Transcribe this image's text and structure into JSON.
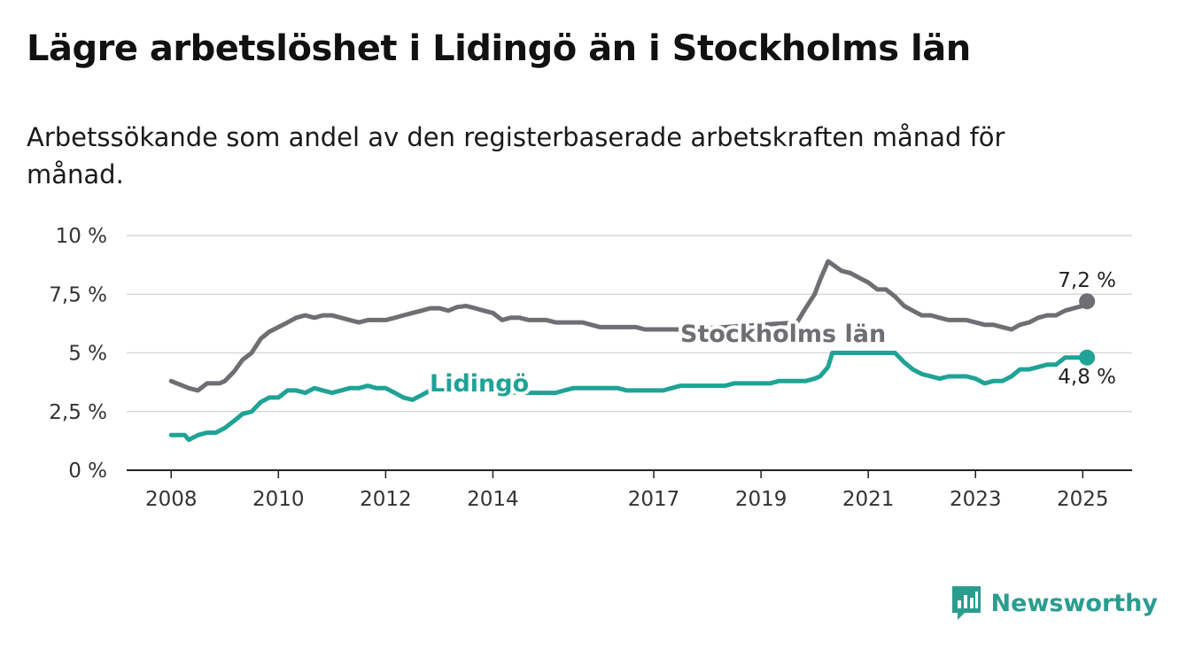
{
  "title": "Lägre arbetslöshet i Lidingö än i Stockholms län",
  "subtitle": "Arbetssökande som andel av den registerbaserade arbetskraften månad för månad.",
  "brand": {
    "name": "Newsworthy",
    "icon": "bar-chart-speech-icon",
    "color": "#2a9d8f"
  },
  "chart_data": {
    "type": "line",
    "x_ticks": [
      "2008",
      "2010",
      "2012",
      "2014",
      "2017",
      "2019",
      "2021",
      "2023",
      "2025"
    ],
    "y_ticks": [
      "0 %",
      "2,5 %",
      "5 %",
      "7,5 %",
      "10 %"
    ],
    "y_tick_values": [
      0,
      2.5,
      5,
      7.5,
      10
    ],
    "xlim": [
      2007.17,
      2025.92
    ],
    "ylim": [
      0,
      10
    ],
    "grid": "horizontal",
    "series": [
      {
        "name": "Stockholms län",
        "color": "#6e6e73",
        "end_label": "7,2 %",
        "x": [
          2008.0,
          2008.33,
          2008.5,
          2008.67,
          2008.9,
          2009.0,
          2009.17,
          2009.33,
          2009.5,
          2009.67,
          2009.83,
          2010.0,
          2010.17,
          2010.33,
          2010.5,
          2010.67,
          2010.83,
          2011.0,
          2011.17,
          2011.33,
          2011.5,
          2011.67,
          2011.83,
          2012.0,
          2012.17,
          2012.33,
          2012.5,
          2012.67,
          2012.83,
          2013.0,
          2013.17,
          2013.33,
          2013.5,
          2013.67,
          2013.83,
          2014.0,
          2014.17,
          2014.33,
          2014.5,
          2014.67,
          2014.83,
          2015.0,
          2015.17,
          2015.33,
          2015.5,
          2015.67,
          2015.83,
          2016.0,
          2016.17,
          2016.33,
          2016.5,
          2016.67,
          2016.83,
          2017.0,
          2017.17,
          2017.33,
          2017.5,
          2017.67,
          2019.67,
          2019.83,
          2020.0,
          2020.1,
          2020.25,
          2020.5,
          2020.67,
          2020.83,
          2021.0,
          2021.17,
          2021.33,
          2021.5,
          2021.67,
          2021.83,
          2022.0,
          2022.17,
          2022.33,
          2022.5,
          2022.67,
          2022.83,
          2023.0,
          2023.17,
          2023.33,
          2023.5,
          2023.67,
          2023.83,
          2024.0,
          2024.17,
          2024.33,
          2024.5,
          2024.67,
          2024.83,
          2025.0,
          2025.08
        ],
        "y": [
          3.8,
          3.5,
          3.4,
          3.7,
          3.7,
          3.8,
          4.2,
          4.7,
          5.0,
          5.6,
          5.9,
          6.1,
          6.3,
          6.5,
          6.6,
          6.5,
          6.6,
          6.6,
          6.5,
          6.4,
          6.3,
          6.4,
          6.4,
          6.4,
          6.5,
          6.6,
          6.7,
          6.8,
          6.9,
          6.9,
          6.8,
          6.95,
          7.0,
          6.9,
          6.8,
          6.7,
          6.4,
          6.5,
          6.5,
          6.4,
          6.4,
          6.4,
          6.3,
          6.3,
          6.3,
          6.3,
          6.2,
          6.1,
          6.1,
          6.1,
          6.1,
          6.1,
          6.0,
          6.0,
          6.0,
          6.0,
          6.0,
          6.0,
          6.3,
          6.9,
          7.5,
          8.1,
          8.9,
          8.5,
          8.4,
          8.2,
          8.0,
          7.7,
          7.7,
          7.4,
          7.0,
          6.8,
          6.6,
          6.6,
          6.5,
          6.4,
          6.4,
          6.4,
          6.3,
          6.2,
          6.2,
          6.1,
          6.0,
          6.2,
          6.3,
          6.5,
          6.6,
          6.6,
          6.8,
          6.9,
          7.0,
          7.2
        ]
      },
      {
        "name": "Lidingö",
        "color": "#1fa396",
        "end_label": "4,8 %",
        "x": [
          2008.0,
          2008.25,
          2008.33,
          2008.5,
          2008.67,
          2008.83,
          2009.0,
          2009.17,
          2009.33,
          2009.5,
          2009.67,
          2009.83,
          2010.0,
          2010.17,
          2010.33,
          2010.5,
          2010.67,
          2010.83,
          2011.0,
          2011.17,
          2011.33,
          2011.5,
          2011.67,
          2011.83,
          2012.0,
          2012.17,
          2012.33,
          2012.5,
          2012.67,
          2012.83,
          2014.67,
          2014.83,
          2015.0,
          2015.17,
          2015.33,
          2015.5,
          2015.67,
          2015.83,
          2016.0,
          2016.17,
          2016.33,
          2016.5,
          2016.67,
          2016.83,
          2017.0,
          2017.17,
          2017.33,
          2017.5,
          2017.67,
          2017.83,
          2018.0,
          2018.17,
          2018.33,
          2018.5,
          2018.67,
          2018.83,
          2019.0,
          2019.17,
          2019.33,
          2019.5,
          2019.67,
          2019.83,
          2020.0,
          2020.1,
          2020.25,
          2020.33,
          2021.17,
          2021.33,
          2021.5,
          2021.67,
          2021.83,
          2022.0,
          2022.17,
          2022.33,
          2022.5,
          2022.67,
          2022.83,
          2023.0,
          2023.17,
          2023.33,
          2023.5,
          2023.67,
          2023.83,
          2024.0,
          2024.17,
          2024.33,
          2024.5,
          2024.67,
          2024.83,
          2025.0,
          2025.08
        ],
        "y": [
          1.5,
          1.5,
          1.3,
          1.5,
          1.6,
          1.6,
          1.8,
          2.1,
          2.4,
          2.5,
          2.9,
          3.1,
          3.1,
          3.4,
          3.4,
          3.3,
          3.5,
          3.4,
          3.3,
          3.4,
          3.5,
          3.5,
          3.6,
          3.5,
          3.5,
          3.3,
          3.1,
          3.0,
          3.2,
          3.4,
          3.3,
          3.3,
          3.3,
          3.3,
          3.4,
          3.5,
          3.5,
          3.5,
          3.5,
          3.5,
          3.5,
          3.4,
          3.4,
          3.4,
          3.4,
          3.4,
          3.5,
          3.6,
          3.6,
          3.6,
          3.6,
          3.6,
          3.6,
          3.7,
          3.7,
          3.7,
          3.7,
          3.7,
          3.8,
          3.8,
          3.8,
          3.8,
          3.9,
          4.0,
          4.4,
          5.0,
          5.0,
          5.0,
          5.0,
          4.6,
          4.3,
          4.1,
          4.0,
          3.9,
          4.0,
          4.0,
          4.0,
          3.9,
          3.7,
          3.8,
          3.8,
          4.0,
          4.3,
          4.3,
          4.4,
          4.5,
          4.5,
          4.8,
          4.8,
          4.8,
          4.8
        ]
      }
    ]
  }
}
